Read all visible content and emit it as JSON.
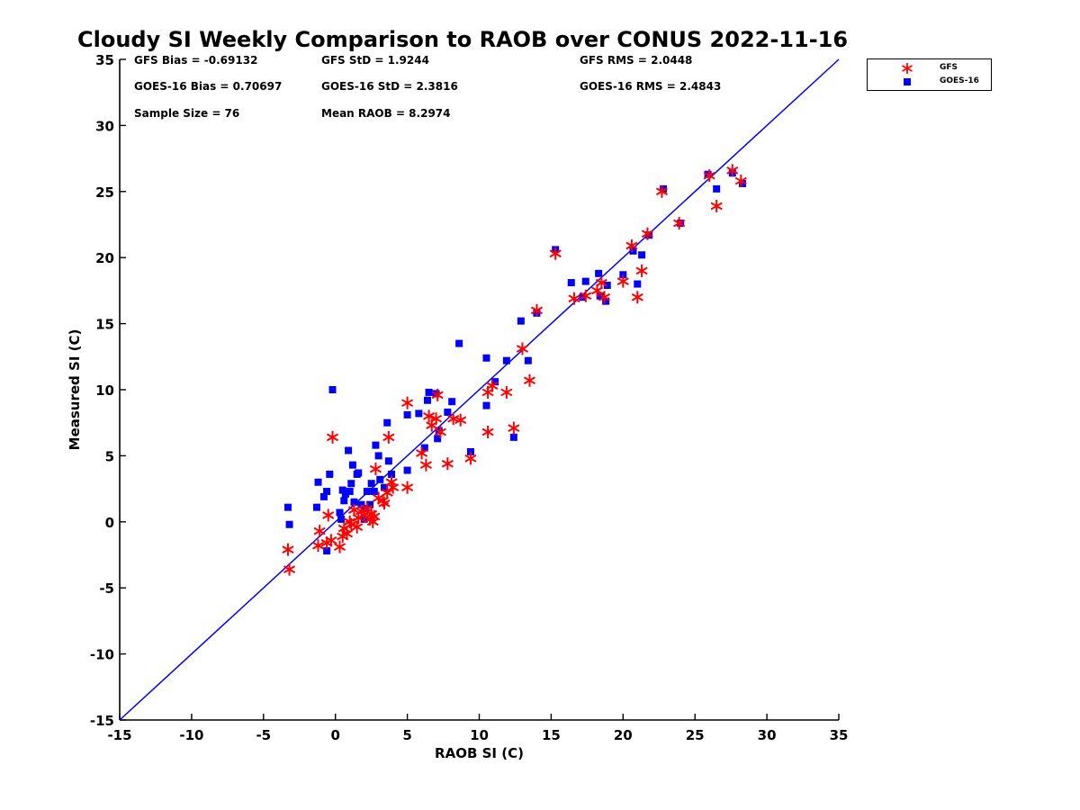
{
  "chart_data": {
    "type": "scatter",
    "title": "Cloudy SI Weekly Comparison to RAOB over CONUS 2022-11-16",
    "xlabel": "RAOB SI (C)",
    "ylabel": "Measured SI (C)",
    "xlim": [
      -15,
      35
    ],
    "ylim": [
      -15,
      35
    ],
    "xticks": [
      -15,
      -10,
      -5,
      0,
      5,
      10,
      15,
      20,
      25,
      30,
      35
    ],
    "yticks": [
      -15,
      -10,
      -5,
      0,
      5,
      10,
      15,
      20,
      25,
      30,
      35
    ],
    "grid": false,
    "legend_position": "outside-top-right",
    "reference_line": {
      "x": [
        -15,
        35
      ],
      "y": [
        -15,
        35
      ],
      "color": "#0000ff"
    },
    "stats": {
      "gfs_bias": "GFS Bias = -0.69132",
      "gfs_std": "GFS StD = 1.9244",
      "gfs_rms": "GFS RMS = 2.0448",
      "goes_bias": "GOES-16 Bias = 0.70697",
      "goes_std": "GOES-16 StD = 2.3816",
      "goes_rms": "GOES-16 RMS = 2.4843",
      "sample_size": "Sample Size = 76",
      "mean_raob": "Mean RAOB = 8.2974"
    },
    "series": [
      {
        "name": "GFS",
        "marker": "asterisk",
        "color": "#ff0000",
        "points": [
          [
            -3.3,
            -2.1
          ],
          [
            -3.2,
            -3.6
          ],
          [
            -1.2,
            -1.8
          ],
          [
            -1.1,
            -0.7
          ],
          [
            -0.6,
            -1.6
          ],
          [
            -0.5,
            0.5
          ],
          [
            -0.3,
            -1.4
          ],
          [
            -0.2,
            6.4
          ],
          [
            0.3,
            -1.9
          ],
          [
            0.5,
            -1.1
          ],
          [
            0.6,
            -0.5
          ],
          [
            0.8,
            -0.9
          ],
          [
            1.0,
            0.0
          ],
          [
            1.1,
            -0.2
          ],
          [
            1.3,
            0.9
          ],
          [
            1.5,
            -0.4
          ],
          [
            1.6,
            0.3
          ],
          [
            1.8,
            0.8
          ],
          [
            2.0,
            0.5
          ],
          [
            2.2,
            1.0
          ],
          [
            2.4,
            0.2
          ],
          [
            2.5,
            0.6
          ],
          [
            2.6,
            0.0
          ],
          [
            2.7,
            0.4
          ],
          [
            2.8,
            4.0
          ],
          [
            3.0,
            1.8
          ],
          [
            3.3,
            1.6
          ],
          [
            3.4,
            1.4
          ],
          [
            3.6,
            2.2
          ],
          [
            3.7,
            6.4
          ],
          [
            3.9,
            3.0
          ],
          [
            4.0,
            2.6
          ],
          [
            5.0,
            2.6
          ],
          [
            5.0,
            9.0
          ],
          [
            6.0,
            5.2
          ],
          [
            6.3,
            4.3
          ],
          [
            6.5,
            8.0
          ],
          [
            6.7,
            7.3
          ],
          [
            7.0,
            7.8
          ],
          [
            7.1,
            9.6
          ],
          [
            7.3,
            6.8
          ],
          [
            7.8,
            4.4
          ],
          [
            8.2,
            7.8
          ],
          [
            8.7,
            7.7
          ],
          [
            9.4,
            4.8
          ],
          [
            10.6,
            9.8
          ],
          [
            10.6,
            6.8
          ],
          [
            10.9,
            10.3
          ],
          [
            11.9,
            9.8
          ],
          [
            12.4,
            7.1
          ],
          [
            13.0,
            13.1
          ],
          [
            13.5,
            10.7
          ],
          [
            14.0,
            16.0
          ],
          [
            15.3,
            20.3
          ],
          [
            16.6,
            16.9
          ],
          [
            17.4,
            17.1
          ],
          [
            18.2,
            17.5
          ],
          [
            18.5,
            18.1
          ],
          [
            18.7,
            17.0
          ],
          [
            20.0,
            18.2
          ],
          [
            20.6,
            20.9
          ],
          [
            21.0,
            17.0
          ],
          [
            21.3,
            19.0
          ],
          [
            21.7,
            21.8
          ],
          [
            22.7,
            25.0
          ],
          [
            23.9,
            22.6
          ],
          [
            26.0,
            26.2
          ],
          [
            26.5,
            23.9
          ],
          [
            27.6,
            26.6
          ],
          [
            28.2,
            25.8
          ]
        ]
      },
      {
        "name": "GOES-16",
        "marker": "square",
        "color": "#0000ff",
        "points": [
          [
            -3.3,
            1.1
          ],
          [
            -3.2,
            -0.2
          ],
          [
            -1.3,
            1.1
          ],
          [
            -1.2,
            3.0
          ],
          [
            -0.8,
            1.9
          ],
          [
            -0.6,
            2.3
          ],
          [
            -0.6,
            -2.2
          ],
          [
            -0.4,
            3.6
          ],
          [
            -0.2,
            10.0
          ],
          [
            0.3,
            0.7
          ],
          [
            0.4,
            0.2
          ],
          [
            0.5,
            2.4
          ],
          [
            0.6,
            1.6
          ],
          [
            0.7,
            2.1
          ],
          [
            0.9,
            5.4
          ],
          [
            1.0,
            2.3
          ],
          [
            1.1,
            2.9
          ],
          [
            1.2,
            4.3
          ],
          [
            1.3,
            1.5
          ],
          [
            1.5,
            3.6
          ],
          [
            1.6,
            3.7
          ],
          [
            1.8,
            1.3
          ],
          [
            2.0,
            0.2
          ],
          [
            2.1,
            1.0
          ],
          [
            2.2,
            2.3
          ],
          [
            2.4,
            1.3
          ],
          [
            2.5,
            2.9
          ],
          [
            2.7,
            2.3
          ],
          [
            2.8,
            5.8
          ],
          [
            3.0,
            5.0
          ],
          [
            3.1,
            3.2
          ],
          [
            3.4,
            2.6
          ],
          [
            3.6,
            7.5
          ],
          [
            3.7,
            4.6
          ],
          [
            3.9,
            3.6
          ],
          [
            5.0,
            3.9
          ],
          [
            5.0,
            8.1
          ],
          [
            5.8,
            8.2
          ],
          [
            6.2,
            5.6
          ],
          [
            6.4,
            9.2
          ],
          [
            6.5,
            9.8
          ],
          [
            7.0,
            9.7
          ],
          [
            7.1,
            6.3
          ],
          [
            7.2,
            6.9
          ],
          [
            7.8,
            8.3
          ],
          [
            8.1,
            9.1
          ],
          [
            8.6,
            13.5
          ],
          [
            9.4,
            5.3
          ],
          [
            10.5,
            12.4
          ],
          [
            10.5,
            8.8
          ],
          [
            11.1,
            10.6
          ],
          [
            11.9,
            12.2
          ],
          [
            12.4,
            6.4
          ],
          [
            12.9,
            15.2
          ],
          [
            13.4,
            12.2
          ],
          [
            14.0,
            15.8
          ],
          [
            15.3,
            20.6
          ],
          [
            16.4,
            18.1
          ],
          [
            17.2,
            17.0
          ],
          [
            17.4,
            18.2
          ],
          [
            18.3,
            18.8
          ],
          [
            18.4,
            17.1
          ],
          [
            18.8,
            16.7
          ],
          [
            18.9,
            17.9
          ],
          [
            20.0,
            18.7
          ],
          [
            20.7,
            20.5
          ],
          [
            21.0,
            18.0
          ],
          [
            21.3,
            20.2
          ],
          [
            21.8,
            21.7
          ],
          [
            22.8,
            25.2
          ],
          [
            24.0,
            22.6
          ],
          [
            25.9,
            26.3
          ],
          [
            26.5,
            25.2
          ],
          [
            27.6,
            26.4
          ],
          [
            28.3,
            25.6
          ]
        ]
      }
    ]
  }
}
